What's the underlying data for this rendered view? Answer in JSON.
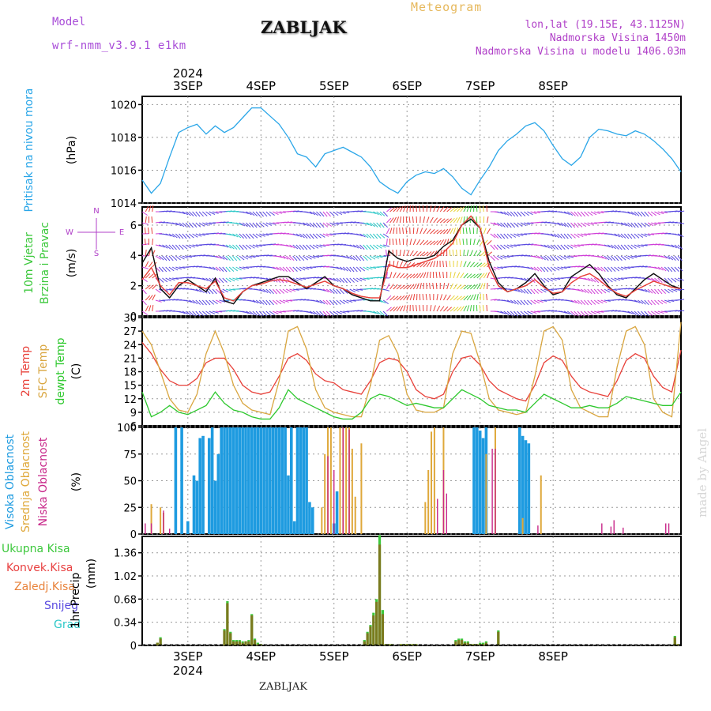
{
  "header": {
    "model_label": "Model",
    "model_run": "wrf-nmm_v3.9.1 e1km",
    "station": "ZABLJAK",
    "product": "Meteogram",
    "info_lines": [
      "lon,lat (19.15E, 43.1125N)",
      "Nadmorska Visina 1450m",
      "Nadmorska Visina u modelu 1406.03m"
    ],
    "watermark": "made by Angel",
    "footer_station": "ZABLJAK"
  },
  "colors": {
    "pressure": "#2aa6e8",
    "t2m": "#e8413a",
    "tsfc": "#d9a640",
    "dewpt": "#2ec82e",
    "high_cloud": "#1e9be0",
    "mid_cloud": "#dfa83a",
    "low_cloud": "#c8288a",
    "precip_total": "#3cc83c",
    "precip_conv": "#e84040",
    "precip_snow": "#5a4ae0",
    "precip_grad": "#2ec8c8",
    "precip_frz": "#e8823a",
    "precip_bar": "#7a7a1e",
    "wind_speed_line": "#111111",
    "wind_gust_line": "#e8413a",
    "wind_compass": "#b040c8",
    "grid": "#9a9a9a"
  },
  "chart_data": [
    {
      "type": "line",
      "panel": "pressure",
      "ylabel_left": "Pritisak na nivou mora",
      "ylabel_unit": "(hPa)",
      "ylim": [
        1014,
        1020.5
      ],
      "yticks": [
        1014,
        1016,
        1018,
        1020
      ],
      "x_hours_from_3sep_00": [
        -15,
        -12,
        -9,
        -6,
        -3,
        0,
        3,
        6,
        9,
        12,
        15,
        18,
        21,
        24,
        27,
        30,
        33,
        36,
        39,
        42,
        45,
        48,
        51,
        54,
        57,
        60,
        63,
        66,
        69,
        72,
        75,
        78,
        81,
        84,
        87,
        90,
        93,
        96,
        99,
        102,
        105,
        108,
        111,
        114,
        117,
        120,
        123,
        126,
        129,
        132,
        135,
        138,
        141,
        144,
        147,
        150,
        153,
        156,
        159,
        162
      ],
      "series": [
        {
          "name": "pressure",
          "values": [
            1015.4,
            1014.6,
            1015.2,
            1016.8,
            1018.3,
            1018.6,
            1018.8,
            1018.2,
            1018.7,
            1018.3,
            1018.6,
            1019.2,
            1019.8,
            1019.8,
            1019.3,
            1018.8,
            1018.0,
            1017.0,
            1016.8,
            1016.2,
            1017.0,
            1017.2,
            1017.4,
            1017.1,
            1016.8,
            1016.2,
            1015.3,
            1014.9,
            1014.6,
            1015.3,
            1015.7,
            1015.9,
            1015.8,
            1016.1,
            1015.6,
            1014.9,
            1014.5,
            1015.4,
            1016.2,
            1017.2,
            1017.8,
            1018.2,
            1018.7,
            1018.9,
            1018.4,
            1017.5,
            1016.7,
            1016.3,
            1016.8,
            1018.0,
            1018.5,
            1018.4,
            1018.2,
            1018.1,
            1018.4,
            1018.2,
            1017.8,
            1017.3,
            1016.7,
            1015.9
          ]
        }
      ]
    },
    {
      "type": "line",
      "panel": "wind",
      "ylabel_left": [
        "10m Vjetar",
        "Brzina i Pravac"
      ],
      "ylabel_unit": "(m/s)",
      "compass_labels": [
        "N",
        "W",
        "E",
        "S"
      ],
      "ylim": [
        0,
        7.2
      ],
      "yticks": [
        0,
        2,
        4,
        6
      ],
      "x_hours_from_3sep_00": [
        -15,
        -12,
        -9,
        -6,
        -3,
        0,
        3,
        6,
        9,
        12,
        15,
        18,
        21,
        24,
        27,
        30,
        33,
        36,
        39,
        42,
        45,
        48,
        51,
        54,
        57,
        60,
        63,
        66,
        69,
        72,
        75,
        78,
        81,
        84,
        87,
        90,
        93,
        96,
        99,
        102,
        105,
        108,
        111,
        114,
        117,
        120,
        123,
        126,
        129,
        132,
        135,
        138,
        141,
        144,
        147,
        150,
        153,
        156,
        159,
        162
      ],
      "series": [
        {
          "name": "speed",
          "values": [
            3.5,
            4.5,
            1.8,
            1.2,
            2.0,
            2.4,
            2.0,
            1.6,
            2.5,
            1.0,
            0.8,
            1.6,
            2.0,
            2.2,
            2.4,
            2.6,
            2.6,
            2.2,
            1.8,
            2.2,
            2.6,
            2.0,
            1.8,
            1.4,
            1.2,
            1.0,
            1.0,
            4.3,
            3.8,
            3.6,
            3.8,
            3.8,
            4.0,
            4.6,
            5.0,
            6.0,
            6.4,
            5.8,
            3.6,
            2.2,
            1.6,
            1.8,
            2.2,
            2.8,
            2.0,
            1.4,
            1.6,
            2.6,
            3.0,
            3.4,
            2.8,
            2.0,
            1.4,
            1.2,
            1.8,
            2.4,
            2.8,
            2.4,
            2.0,
            1.8
          ]
        },
        {
          "name": "gust",
          "values": [
            2.4,
            3.2,
            2.0,
            1.4,
            2.2,
            2.2,
            2.0,
            1.8,
            2.3,
            1.2,
            1.0,
            1.6,
            2.0,
            2.1,
            2.3,
            2.4,
            2.3,
            2.1,
            1.9,
            2.1,
            2.3,
            2.0,
            1.8,
            1.5,
            1.3,
            1.2,
            1.2,
            3.4,
            3.2,
            3.2,
            3.4,
            3.6,
            3.8,
            4.2,
            4.8,
            6.0,
            6.6,
            5.8,
            3.2,
            2.0,
            1.6,
            1.8,
            2.0,
            2.4,
            1.9,
            1.5,
            1.6,
            2.2,
            2.6,
            2.8,
            2.4,
            1.9,
            1.5,
            1.3,
            1.7,
            2.0,
            2.3,
            2.1,
            1.9,
            1.8
          ]
        }
      ]
    },
    {
      "type": "line",
      "panel": "temperature",
      "ylabel_left": [
        "2m Temp",
        "SFC Temp",
        "dewpt Temp"
      ],
      "ylabel_unit": "(C)",
      "ylim": [
        6,
        30
      ],
      "yticks": [
        6,
        9,
        12,
        15,
        18,
        21,
        24,
        27,
        30
      ],
      "x_hours_from_3sep_00": [
        -15,
        -12,
        -9,
        -6,
        -3,
        0,
        3,
        6,
        9,
        12,
        15,
        18,
        21,
        24,
        27,
        30,
        33,
        36,
        39,
        42,
        45,
        48,
        51,
        54,
        57,
        60,
        63,
        66,
        69,
        72,
        75,
        78,
        81,
        84,
        87,
        90,
        93,
        96,
        99,
        102,
        105,
        108,
        111,
        114,
        117,
        120,
        123,
        126,
        129,
        132,
        135,
        138,
        141,
        144,
        147,
        150,
        153,
        156,
        159,
        162
      ],
      "series": [
        {
          "name": "2m Temp",
          "values": [
            24.5,
            22.0,
            18.5,
            16.0,
            15.0,
            15.0,
            16.5,
            20.0,
            21.0,
            21.0,
            18.5,
            15.0,
            13.5,
            13.0,
            13.5,
            17.0,
            21.0,
            22.0,
            20.5,
            17.5,
            16.0,
            15.5,
            14.0,
            13.5,
            13.0,
            16.0,
            20.0,
            21.0,
            20.5,
            18.0,
            14.0,
            12.5,
            12.0,
            13.0,
            18.0,
            21.0,
            21.5,
            19.5,
            16.0,
            14.0,
            13.0,
            12.0,
            11.5,
            15.0,
            20.0,
            21.5,
            20.5,
            17.0,
            14.5,
            13.5,
            13.0,
            12.5,
            16.0,
            20.5,
            22.0,
            21.0,
            17.0,
            14.5,
            13.5,
            22.8
          ]
        },
        {
          "name": "SFC Temp",
          "values": [
            27.0,
            24.0,
            18.0,
            12.0,
            9.5,
            9.0,
            13.0,
            22.0,
            27.0,
            22.0,
            15.0,
            11.0,
            9.5,
            9.0,
            8.5,
            16.0,
            27.0,
            28.0,
            23.0,
            14.0,
            10.0,
            9.0,
            8.5,
            8.0,
            8.0,
            15.0,
            25.0,
            26.0,
            22.0,
            13.0,
            9.5,
            9.0,
            9.0,
            10.0,
            22.0,
            27.0,
            26.5,
            20.0,
            12.0,
            9.5,
            9.0,
            8.5,
            9.0,
            17.0,
            27.0,
            28.0,
            25.0,
            14.0,
            10.0,
            9.0,
            8.0,
            8.0,
            19.0,
            27.0,
            28.0,
            24.0,
            12.0,
            9.0,
            8.0,
            29.0
          ]
        },
        {
          "name": "dewpt Temp",
          "values": [
            13.5,
            8.0,
            9.0,
            10.5,
            9.0,
            8.5,
            9.5,
            10.5,
            13.5,
            11.0,
            9.5,
            9.0,
            8.0,
            7.5,
            7.5,
            10.0,
            14.0,
            12.0,
            11.0,
            10.0,
            9.0,
            8.0,
            7.5,
            7.5,
            9.0,
            12.0,
            13.0,
            12.5,
            11.5,
            10.5,
            11.0,
            10.5,
            10.0,
            10.0,
            12.0,
            14.0,
            13.0,
            12.0,
            10.5,
            10.0,
            9.5,
            9.5,
            9.0,
            11.0,
            13.0,
            12.0,
            11.0,
            10.0,
            10.0,
            10.5,
            10.0,
            10.0,
            11.0,
            12.5,
            12.0,
            11.5,
            11.0,
            10.5,
            10.5,
            13.5
          ]
        }
      ]
    },
    {
      "type": "bar",
      "panel": "cloud",
      "ylabel_left": [
        "Visoka Oblacnost",
        "Srednja Oblacnost",
        "Niska Oblacnost"
      ],
      "ylabel_unit": "(%)",
      "ylim": [
        0,
        100
      ],
      "yticks": [
        0,
        25,
        50,
        75,
        100
      ],
      "series": [
        {
          "name": "Visoka Oblacnost",
          "x_hours_from_3sep_00": [
            -4,
            -2,
            0,
            2,
            3,
            4,
            5,
            7,
            8,
            9,
            10,
            11,
            12,
            13,
            14,
            15,
            16,
            17,
            18,
            19,
            20,
            21,
            22,
            23,
            24,
            25,
            26,
            27,
            28,
            29,
            30,
            31,
            32,
            33,
            34,
            35,
            36,
            37,
            38,
            39,
            40,
            41,
            48,
            49,
            94,
            95,
            96,
            97,
            98,
            109,
            110,
            111,
            112
          ],
          "values": [
            100,
            100,
            12,
            55,
            50,
            90,
            92,
            90,
            100,
            50,
            75,
            100,
            100,
            100,
            100,
            100,
            100,
            100,
            100,
            100,
            100,
            100,
            100,
            100,
            100,
            100,
            100,
            100,
            100,
            100,
            100,
            100,
            100,
            55,
            100,
            12,
            100,
            100,
            100,
            100,
            30,
            25,
            10,
            40,
            100,
            100,
            97,
            90,
            100,
            100,
            92,
            88,
            85
          ]
        },
        {
          "name": "Srednja Oblacnost",
          "x_hours_from_3sep_00": [
            -12,
            -9,
            -8,
            44,
            45,
            46,
            47,
            50,
            51,
            52,
            53,
            54,
            55,
            57,
            78,
            79,
            80,
            81,
            84,
            98,
            101,
            110,
            116
          ],
          "values": [
            28,
            25,
            20,
            25,
            75,
            100,
            100,
            100,
            100,
            100,
            100,
            80,
            35,
            85,
            30,
            60,
            96,
            100,
            100,
            75,
            100,
            15,
            55
          ]
        },
        {
          "name": "Niska Oblacnost",
          "x_hours_from_3sep_00": [
            -14,
            -12,
            -8,
            -6,
            46,
            48,
            51,
            53,
            82,
            84,
            85,
            100,
            101,
            115,
            136,
            139,
            140,
            143,
            157,
            158
          ],
          "values": [
            10,
            10,
            22,
            5,
            73,
            60,
            100,
            98,
            33,
            60,
            38,
            80,
            80,
            8,
            10,
            7,
            13,
            6,
            10,
            10
          ]
        }
      ]
    },
    {
      "type": "bar",
      "panel": "precip",
      "legend_left": [
        "Ukupna Kisa",
        "Konvek.Kisa",
        "Zaledj.Kisa",
        "Snijeg",
        "Grad"
      ],
      "ylabel_unit": [
        "1hr Precip",
        "(mm)"
      ],
      "ylim": [
        0,
        1.6
      ],
      "yticks": [
        0,
        0.34,
        0.68,
        1.02,
        1.36
      ],
      "x_hours_from_3sep_00": [
        -10,
        -9,
        12,
        13,
        14,
        15,
        16,
        17,
        18,
        19,
        20,
        21,
        22,
        23,
        24,
        58,
        59,
        60,
        61,
        62,
        63,
        64,
        65,
        66,
        67,
        70,
        71,
        72,
        73,
        74,
        75,
        88,
        89,
        90,
        91,
        92,
        93,
        94,
        95,
        96,
        97,
        98,
        102,
        160,
        161
      ],
      "series": [
        {
          "name": "Ukupna Kisa",
          "values": [
            0.04,
            0.12,
            0.24,
            0.65,
            0.2,
            0.08,
            0.08,
            0.08,
            0.06,
            0.06,
            0.08,
            0.46,
            0.1,
            0.04,
            0.02,
            0.08,
            0.2,
            0.3,
            0.48,
            0.68,
            1.62,
            0.52,
            0.02,
            0.02,
            0.02,
            0.02,
            0.02,
            0.02,
            0.02,
            0.02,
            0.02,
            0.08,
            0.1,
            0.1,
            0.06,
            0.06,
            0.02,
            0.02,
            0.02,
            0.04,
            0.04,
            0.06,
            0.22,
            0.14,
            0.02
          ]
        },
        {
          "name": "Konvek.Kisa",
          "values": [
            0.04,
            0.1,
            0.22,
            0.62,
            0.18,
            0.06,
            0.06,
            0.06,
            0.04,
            0.06,
            0.06,
            0.44,
            0.08,
            0.02,
            0.02,
            0.06,
            0.18,
            0.28,
            0.44,
            0.64,
            1.48,
            0.46,
            0.02,
            0.02,
            0.02,
            0.02,
            0.02,
            0.02,
            0.02,
            0.02,
            0.02,
            0.06,
            0.08,
            0.08,
            0.04,
            0.04,
            0.02,
            0.02,
            0.02,
            0.02,
            0.02,
            0.04,
            0.2,
            0.12,
            0.02
          ]
        }
      ]
    }
  ],
  "x_axis": {
    "day_labels": [
      "3SEP",
      "4SEP",
      "5SEP",
      "6SEP",
      "7SEP",
      "8SEP"
    ],
    "day_offsets_hours": [
      0,
      24,
      48,
      72,
      96,
      120
    ],
    "year_label": "2024",
    "range_hours": [
      -15,
      162
    ]
  }
}
